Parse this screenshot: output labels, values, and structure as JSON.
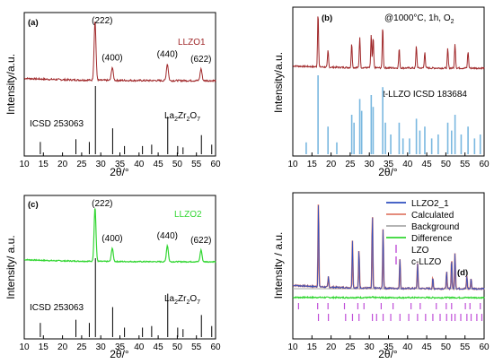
{
  "chart_data": [
    {
      "id": "a",
      "type": "line",
      "panel_label": "(a)",
      "series_label": "LLZO1",
      "series_color": "#a0282a",
      "xlabel": "2θ/°",
      "ylabel": "Intensity/a.u.",
      "xlim": [
        10,
        60
      ],
      "x_ticks": [
        10,
        15,
        20,
        25,
        30,
        35,
        40,
        45,
        50,
        55,
        60
      ],
      "pattern_peaks": [
        {
          "x": 28.5,
          "y": 1.0
        },
        {
          "x": 33.0,
          "y": 0.22
        },
        {
          "x": 47.4,
          "y": 0.28
        },
        {
          "x": 56.2,
          "y": 0.2
        }
      ],
      "peak_labels": [
        {
          "x": 28.5,
          "text": "(222)"
        },
        {
          "x": 33.0,
          "text": "(400)"
        },
        {
          "x": 47.4,
          "text": "(440)"
        },
        {
          "x": 56.2,
          "text": "(622)"
        }
      ],
      "reference_label": "ICSD 253063",
      "reference_compound": "La2Zr2O7",
      "reference_sticks": [
        {
          "x": 14.2,
          "y": 0.18
        },
        {
          "x": 23.5,
          "y": 0.22
        },
        {
          "x": 27.0,
          "y": 0.18
        },
        {
          "x": 28.6,
          "y": 1.0
        },
        {
          "x": 33.1,
          "y": 0.38
        },
        {
          "x": 36.2,
          "y": 0.12
        },
        {
          "x": 40.9,
          "y": 0.12
        },
        {
          "x": 43.3,
          "y": 0.14
        },
        {
          "x": 47.5,
          "y": 0.55
        },
        {
          "x": 50.1,
          "y": 0.12
        },
        {
          "x": 51.5,
          "y": 0.1
        },
        {
          "x": 56.3,
          "y": 0.28
        },
        {
          "x": 59.0,
          "y": 0.14
        }
      ]
    },
    {
      "id": "b",
      "type": "line",
      "panel_label": "(b)",
      "condition_label": "@1000°C, 1h, O",
      "condition_subscript": "2",
      "series_color": "#a0282a",
      "xlabel": "2θ/°",
      "ylabel": "Intensity/a.u.",
      "xlim": [
        10,
        60
      ],
      "x_ticks": [
        10,
        15,
        20,
        25,
        30,
        35,
        40,
        45,
        50,
        55,
        60
      ],
      "pattern_peaks": [
        {
          "x": 16.6,
          "y": 1.0
        },
        {
          "x": 19.2,
          "y": 0.3
        },
        {
          "x": 25.4,
          "y": 0.45
        },
        {
          "x": 27.5,
          "y": 0.55
        },
        {
          "x": 30.5,
          "y": 0.6
        },
        {
          "x": 31.0,
          "y": 0.55
        },
        {
          "x": 33.5,
          "y": 0.75
        },
        {
          "x": 37.8,
          "y": 0.35
        },
        {
          "x": 42.3,
          "y": 0.4
        },
        {
          "x": 44.5,
          "y": 0.3
        },
        {
          "x": 50.5,
          "y": 0.35
        },
        {
          "x": 52.4,
          "y": 0.45
        },
        {
          "x": 55.8,
          "y": 0.3
        }
      ],
      "reference_label": "t-LLZO ICSD 183684",
      "reference_color": "#7ab8e0",
      "reference_sticks": [
        {
          "x": 13.5,
          "y": 0.15
        },
        {
          "x": 16.6,
          "y": 1.0
        },
        {
          "x": 19.2,
          "y": 0.35
        },
        {
          "x": 21.5,
          "y": 0.15
        },
        {
          "x": 25.4,
          "y": 0.5
        },
        {
          "x": 26.0,
          "y": 0.4
        },
        {
          "x": 27.5,
          "y": 0.7
        },
        {
          "x": 28.0,
          "y": 0.55
        },
        {
          "x": 30.5,
          "y": 0.75
        },
        {
          "x": 31.0,
          "y": 0.6
        },
        {
          "x": 33.5,
          "y": 0.85
        },
        {
          "x": 34.2,
          "y": 0.4
        },
        {
          "x": 35.6,
          "y": 0.25
        },
        {
          "x": 37.8,
          "y": 0.4
        },
        {
          "x": 38.8,
          "y": 0.2
        },
        {
          "x": 40.5,
          "y": 0.2
        },
        {
          "x": 42.3,
          "y": 0.45
        },
        {
          "x": 43.2,
          "y": 0.3
        },
        {
          "x": 44.5,
          "y": 0.35
        },
        {
          "x": 46.3,
          "y": 0.2
        },
        {
          "x": 48.0,
          "y": 0.25
        },
        {
          "x": 50.5,
          "y": 0.4
        },
        {
          "x": 51.5,
          "y": 0.3
        },
        {
          "x": 52.4,
          "y": 0.5
        },
        {
          "x": 54.0,
          "y": 0.25
        },
        {
          "x": 55.8,
          "y": 0.35
        },
        {
          "x": 57.5,
          "y": 0.2
        },
        {
          "x": 59.0,
          "y": 0.25
        }
      ]
    },
    {
      "id": "c",
      "type": "line",
      "panel_label": "(c)",
      "series_label": "LLZO2",
      "series_color": "#33d633",
      "xlabel": "2θ/°",
      "ylabel": "Intensity/ a.u.",
      "xlim": [
        10,
        60
      ],
      "x_ticks": [
        10,
        15,
        20,
        25,
        30,
        35,
        40,
        45,
        50,
        55,
        60
      ],
      "pattern_peaks": [
        {
          "x": 28.5,
          "y": 1.0
        },
        {
          "x": 33.0,
          "y": 0.25
        },
        {
          "x": 47.4,
          "y": 0.3
        },
        {
          "x": 56.2,
          "y": 0.22
        }
      ],
      "peak_labels": [
        {
          "x": 28.5,
          "text": "(222)"
        },
        {
          "x": 33.0,
          "text": "(400)"
        },
        {
          "x": 47.4,
          "text": "(440)"
        },
        {
          "x": 56.2,
          "text": "(622)"
        }
      ],
      "reference_label": "ICSD 253063",
      "reference_compound": "La2Zr2O7",
      "reference_sticks": [
        {
          "x": 14.2,
          "y": 0.18
        },
        {
          "x": 23.5,
          "y": 0.22
        },
        {
          "x": 27.0,
          "y": 0.18
        },
        {
          "x": 28.6,
          "y": 1.0
        },
        {
          "x": 33.1,
          "y": 0.38
        },
        {
          "x": 36.2,
          "y": 0.12
        },
        {
          "x": 40.9,
          "y": 0.12
        },
        {
          "x": 43.3,
          "y": 0.14
        },
        {
          "x": 47.5,
          "y": 0.55
        },
        {
          "x": 50.1,
          "y": 0.12
        },
        {
          "x": 51.5,
          "y": 0.1
        },
        {
          "x": 56.3,
          "y": 0.28
        },
        {
          "x": 59.0,
          "y": 0.14
        }
      ]
    },
    {
      "id": "d",
      "type": "line",
      "panel_label": "(d)",
      "xlabel": "2θ/°",
      "ylabel": "Intensity / a.u.",
      "xlim": [
        10,
        60
      ],
      "x_ticks": [
        10,
        15,
        20,
        25,
        30,
        35,
        40,
        45,
        50,
        55,
        60
      ],
      "legend_position": "top-right",
      "legend": [
        {
          "name": "LLZO2_1",
          "color": "#2f4fbf",
          "kind": "line"
        },
        {
          "name": "Calculated",
          "color": "#e07b6a",
          "kind": "line"
        },
        {
          "name": "Background",
          "color": "#aaaaaa",
          "kind": "line"
        },
        {
          "name": "Difference",
          "color": "#33d633",
          "kind": "line"
        },
        {
          "name": "LZO",
          "color": "#c04fd8",
          "kind": "tick"
        },
        {
          "name": "c-LLZO",
          "color": "#c04fd8",
          "kind": "tick"
        }
      ],
      "pattern_peaks": [
        {
          "x": 16.7,
          "y": 1.0
        },
        {
          "x": 19.3,
          "y": 0.12
        },
        {
          "x": 25.6,
          "y": 0.55
        },
        {
          "x": 27.3,
          "y": 0.45
        },
        {
          "x": 30.8,
          "y": 0.85
        },
        {
          "x": 33.6,
          "y": 0.7
        },
        {
          "x": 38.0,
          "y": 0.35
        },
        {
          "x": 42.6,
          "y": 0.3
        },
        {
          "x": 46.6,
          "y": 0.12
        },
        {
          "x": 50.2,
          "y": 0.2
        },
        {
          "x": 51.5,
          "y": 0.35
        },
        {
          "x": 52.4,
          "y": 0.42
        },
        {
          "x": 55.5,
          "y": 0.15
        },
        {
          "x": 56.6,
          "y": 0.12
        }
      ],
      "lzo_ticks": [
        11.5,
        16.5,
        19.2,
        23.5,
        27.0,
        28.6,
        33.1,
        36.2,
        40.9,
        43.3,
        47.5,
        50.1,
        51.5,
        55.1,
        56.3,
        59.0
      ],
      "cllzo_ticks": [
        16.7,
        19.3,
        23.8,
        25.6,
        27.3,
        30.8,
        31.9,
        33.6,
        35.6,
        38.0,
        40.3,
        42.6,
        44.7,
        46.6,
        48.5,
        50.2,
        51.5,
        52.4,
        53.9,
        55.5,
        56.6,
        58.1,
        59.4
      ]
    }
  ]
}
